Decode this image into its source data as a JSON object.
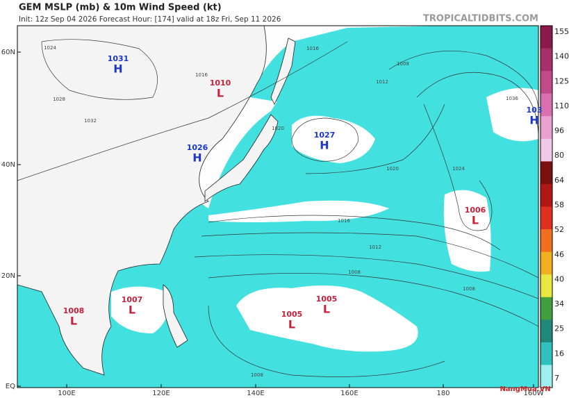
{
  "header": {
    "title": "GEM MSLP (mb) & 10m Wind Speed (kt)",
    "run_info": "Init: 12z Sep 04 2026   Forecast Hour: [174]   valid at 18z Fri, Sep 11 2026",
    "source": "TROPICALTIDBITS.COM"
  },
  "axes": {
    "latitude_labels": [
      "60N",
      "40N",
      "20N",
      "EQ"
    ],
    "longitude_labels": [
      "100E",
      "120E",
      "140E",
      "160E",
      "180",
      "160W"
    ]
  },
  "colorbar": {
    "ticks": [
      "155",
      "140",
      "125",
      "110",
      "96",
      "80",
      "64",
      "58",
      "52",
      "46",
      "40",
      "34",
      "25",
      "16",
      "7"
    ]
  },
  "pressure_centers": [
    {
      "symbol": "H",
      "pressure": "1031"
    },
    {
      "symbol": "L",
      "pressure": "1010"
    },
    {
      "symbol": "H",
      "pressure": "1026"
    },
    {
      "symbol": "H",
      "pressure": "1027"
    },
    {
      "symbol": "H",
      "pressure": "103"
    },
    {
      "symbol": "L",
      "pressure": "1006"
    },
    {
      "symbol": "L",
      "pressure": "1007"
    },
    {
      "symbol": "L",
      "pressure": "1008"
    },
    {
      "symbol": "L",
      "pressure": "1005"
    },
    {
      "symbol": "L",
      "pressure": "1005"
    }
  ],
  "isobar_labels": [
    "1024",
    "1016",
    "1028",
    "1032",
    "1020",
    "1016",
    "1008",
    "1012",
    "1016",
    "1020",
    "1024",
    "1012",
    "1008",
    "1008",
    "1008",
    "1036"
  ],
  "watermark": "NangMua.VN"
}
